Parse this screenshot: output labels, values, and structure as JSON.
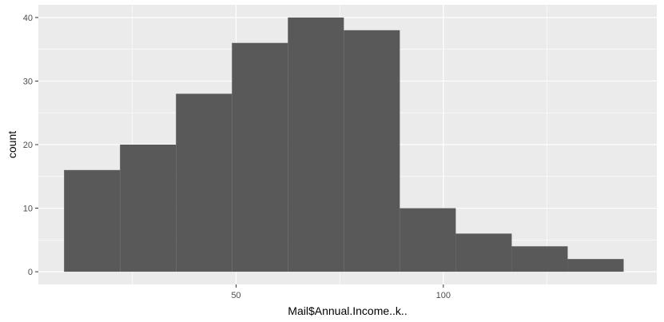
{
  "chart_data": {
    "type": "bar",
    "subtype": "histogram",
    "xlabel": "Mail$Annual.Income..k..",
    "ylabel": "count",
    "x_ticks": [
      50,
      100
    ],
    "y_ticks": [
      0,
      10,
      20,
      30,
      40
    ],
    "xlim": [
      2.3,
      151.5
    ],
    "ylim": [
      -2,
      42
    ],
    "bin_edges": [
      8.5,
      22.0,
      35.5,
      49.0,
      62.5,
      76.0,
      89.5,
      103.0,
      116.5,
      130.0,
      143.5
    ],
    "counts": [
      16,
      20,
      28,
      36,
      40,
      38,
      10,
      6,
      4,
      2
    ],
    "grid": true,
    "legend": "none",
    "colors": {
      "panel_background": "#ebebeb",
      "grid_major": "#ffffff",
      "bar_fill": "#595959",
      "tick_text": "#4d4d4d",
      "tick_mark": "#333333"
    }
  }
}
